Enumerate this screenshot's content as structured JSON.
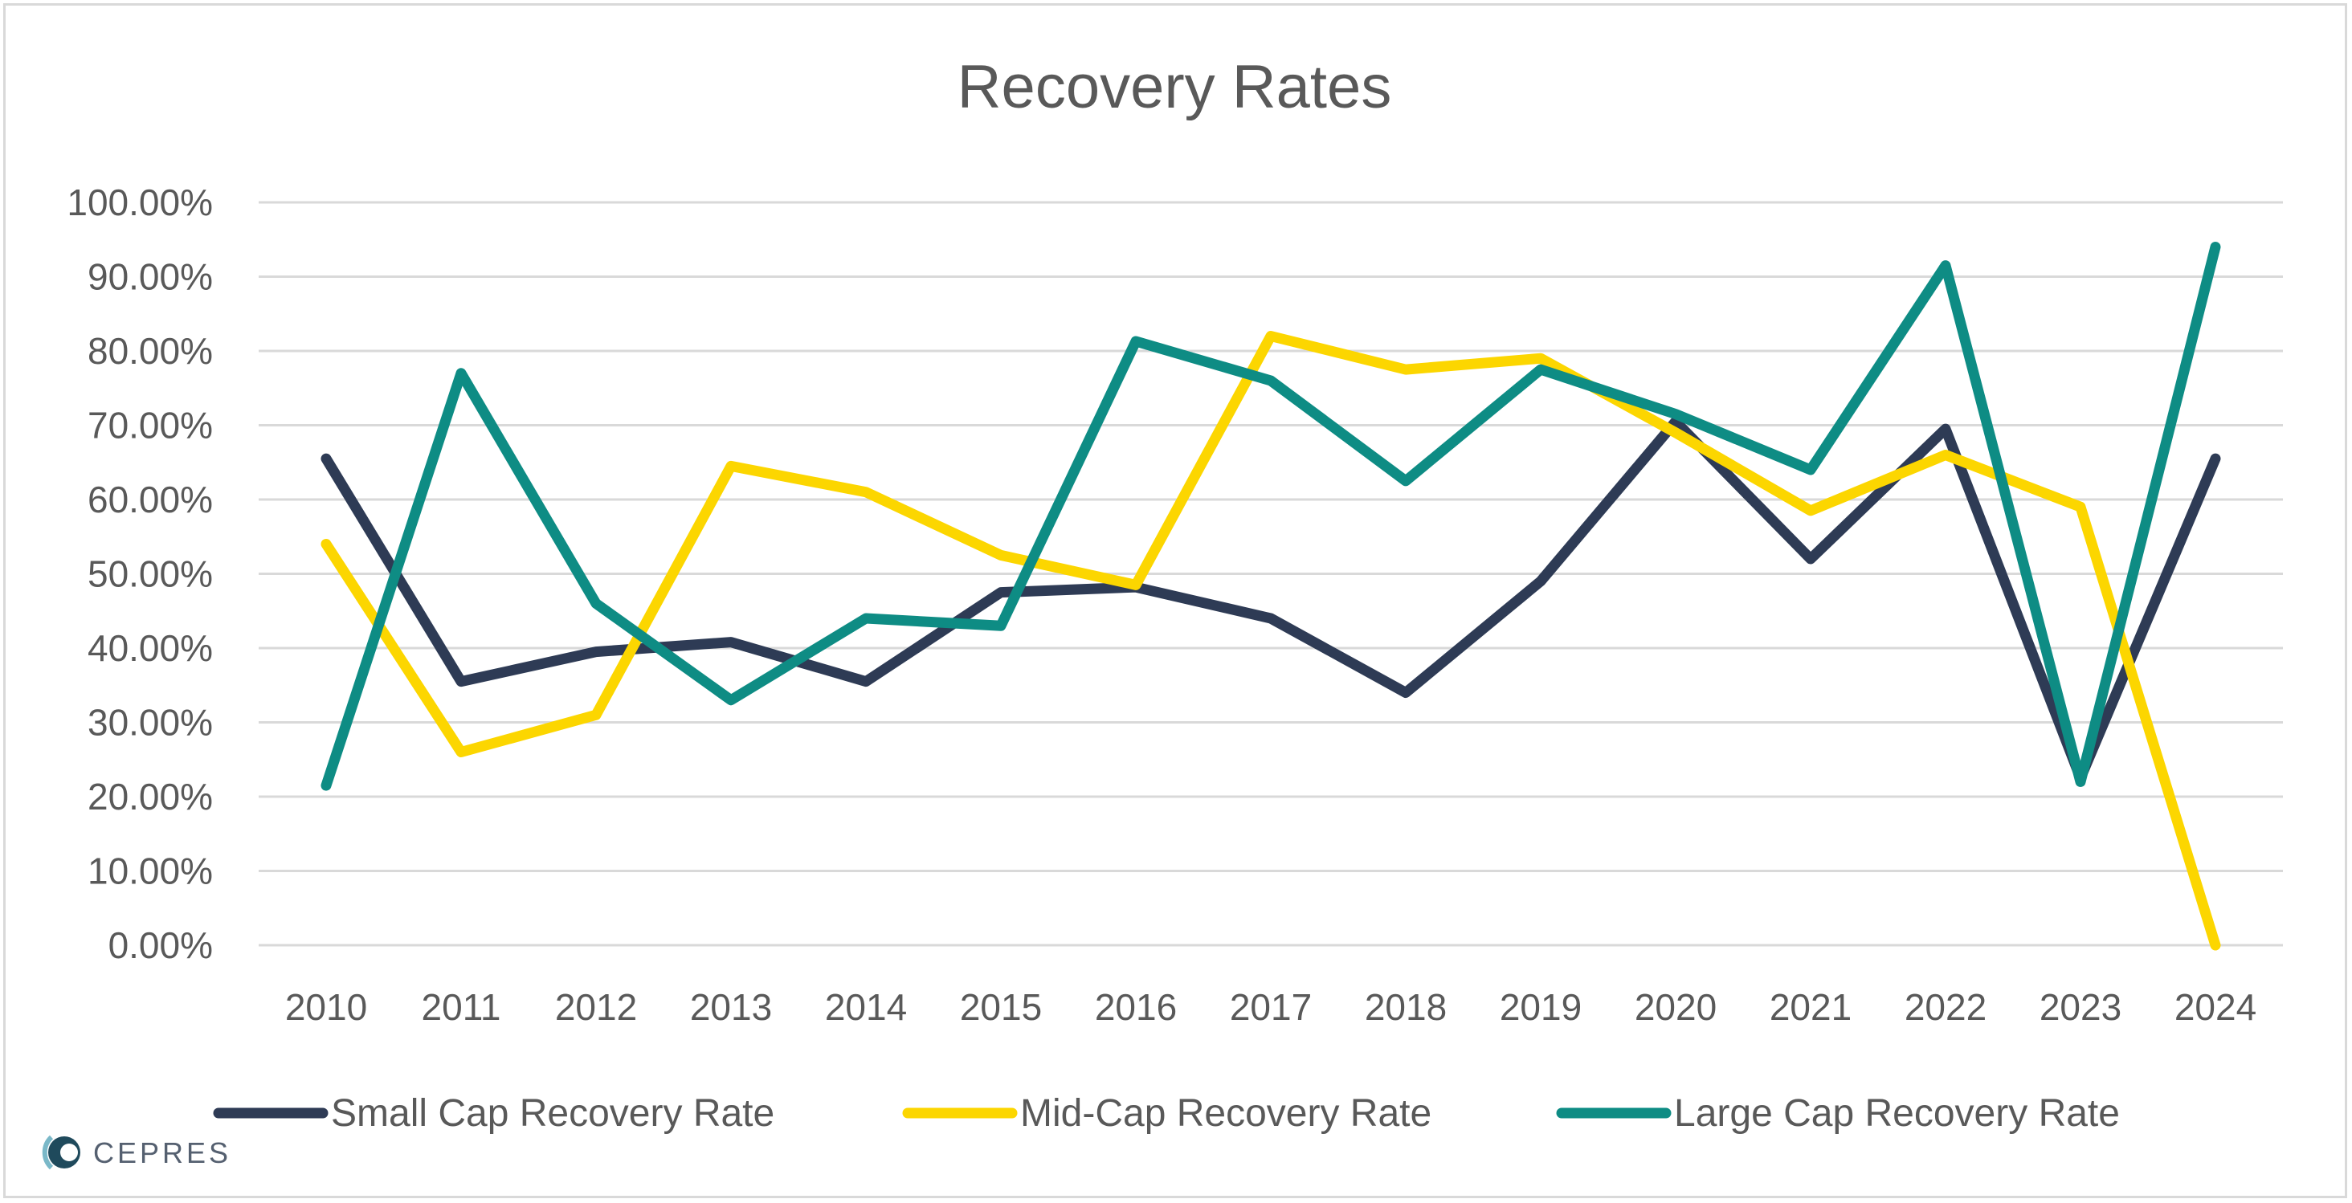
{
  "chart_data": {
    "type": "line",
    "title": "Recovery Rates",
    "xlabel": "",
    "ylabel": "",
    "categories": [
      "2010",
      "2011",
      "2012",
      "2013",
      "2014",
      "2015",
      "2016",
      "2017",
      "2018",
      "2019",
      "2020",
      "2021",
      "2022",
      "2023",
      "2024"
    ],
    "ylim": [
      0,
      100
    ],
    "yticks": [
      0,
      10,
      20,
      30,
      40,
      50,
      60,
      70,
      80,
      90,
      100
    ],
    "ytick_labels": [
      "0.00%",
      "10.00%",
      "20.00%",
      "30.00%",
      "40.00%",
      "50.00%",
      "60.00%",
      "70.00%",
      "80.00%",
      "90.00%",
      "100.00%"
    ],
    "grid": true,
    "legend_position": "bottom",
    "series": [
      {
        "name": "Small Cap Recovery Rate",
        "color": "#2e3b55",
        "values": [
          65.5,
          35.5,
          39.5,
          40.8,
          35.5,
          47.5,
          48.2,
          44.0,
          34.0,
          49.0,
          70.5,
          52.0,
          69.5,
          22.5,
          65.5
        ]
      },
      {
        "name": "Mid-Cap Recovery Rate",
        "color": "#fcd600",
        "values": [
          54.0,
          26.0,
          31.0,
          64.5,
          61.0,
          52.5,
          48.5,
          82.0,
          77.5,
          79.0,
          69.0,
          58.5,
          66.0,
          59.0,
          0.0
        ]
      },
      {
        "name": "Large Cap Recovery Rate",
        "color": "#0e8c84",
        "values": [
          21.5,
          77.0,
          46.0,
          33.0,
          44.0,
          43.0,
          81.3,
          76.0,
          62.5,
          77.5,
          71.5,
          64.0,
          91.5,
          22.0,
          94.0
        ]
      }
    ]
  },
  "logo": {
    "text": "CEPRES",
    "colors": [
      "#7ab8c8",
      "#1f4a5c"
    ]
  }
}
